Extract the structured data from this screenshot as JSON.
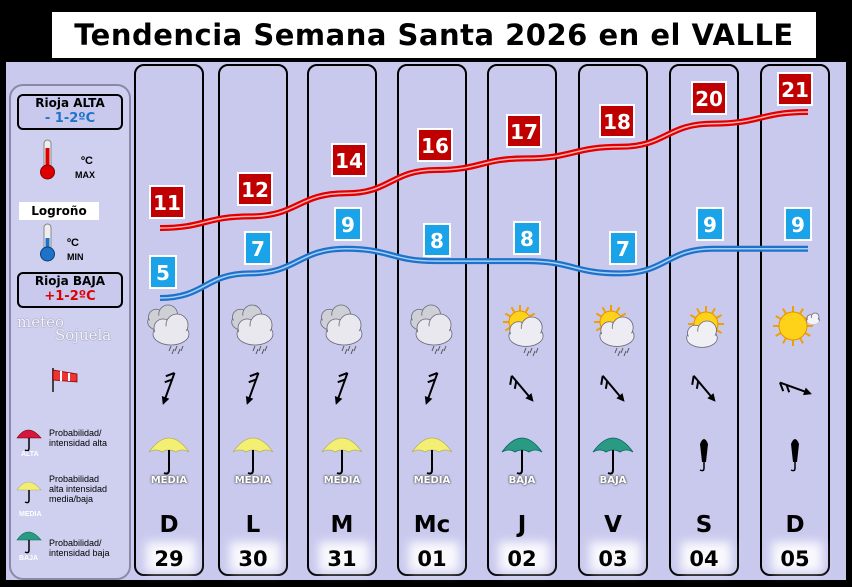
{
  "header": {
    "title": "Tendencia Semana Santa 2026 en el VALLE"
  },
  "legend": {
    "rioja_alta_label": "Rioja ALTA",
    "rioja_alta_value": "- 1-2ºC",
    "max_unit": "ºC",
    "max_label": "MAX",
    "city_label": "Logroño",
    "min_unit": "ºC",
    "min_label": "MIN",
    "rioja_baja_label": "Rioja BAJA",
    "rioja_baja_value": "+1-2ºC",
    "brand_line1": "meteo",
    "brand_line2": "Sojuela",
    "alta_short": "ALTA",
    "alta_desc": "Probabilidad/ intensidad alta",
    "media_short": "MEDIA",
    "media_desc": "Probabilidad alta intensidad media/baja",
    "baja_short": "BAJA",
    "baja_desc": "Probabilidad/ intensidad baja",
    "colors": {
      "max": "#e00000",
      "min": "#1e73c8",
      "box_red": "#c00000",
      "box_blue": "#1aa3e8"
    }
  },
  "chart_data": {
    "type": "line",
    "title": "Tendencia Semana Santa 2026 en el VALLE",
    "categories": [
      "D 29",
      "L 30",
      "M 31",
      "Mc 01",
      "J 02",
      "V 03",
      "S 04",
      "D 05"
    ],
    "days": [
      {
        "letter": "D",
        "num": "29",
        "rain": "MEDIA",
        "umbrella": "yellow",
        "sky": "cloud-rain"
      },
      {
        "letter": "L",
        "num": "30",
        "rain": "MEDIA",
        "umbrella": "yellow",
        "sky": "cloud-rain"
      },
      {
        "letter": "M",
        "num": "31",
        "rain": "MEDIA",
        "umbrella": "yellow",
        "sky": "cloud-rain"
      },
      {
        "letter": "Mc",
        "num": "01",
        "rain": "MEDIA",
        "umbrella": "yellow",
        "sky": "cloud-rain"
      },
      {
        "letter": "J",
        "num": "02",
        "rain": "BAJA",
        "umbrella": "green",
        "sky": "sun-cloud-rain"
      },
      {
        "letter": "V",
        "num": "03",
        "rain": "BAJA",
        "umbrella": "green",
        "sky": "sun-cloud-rain"
      },
      {
        "letter": "S",
        "num": "04",
        "rain": "",
        "umbrella": "closed",
        "sky": "sun-cloud"
      },
      {
        "letter": "D",
        "num": "05",
        "rain": "",
        "umbrella": "closed",
        "sky": "sun"
      }
    ],
    "series": [
      {
        "key": "max",
        "values": [
          11,
          12,
          14,
          16,
          17,
          18,
          20,
          21
        ]
      },
      {
        "key": "min",
        "values": [
          5,
          7,
          9,
          8,
          8,
          7,
          9,
          9
        ]
      }
    ],
    "wind_direction_deg": [
      200,
      200,
      200,
      200,
      140,
      140,
      140,
      110
    ]
  }
}
